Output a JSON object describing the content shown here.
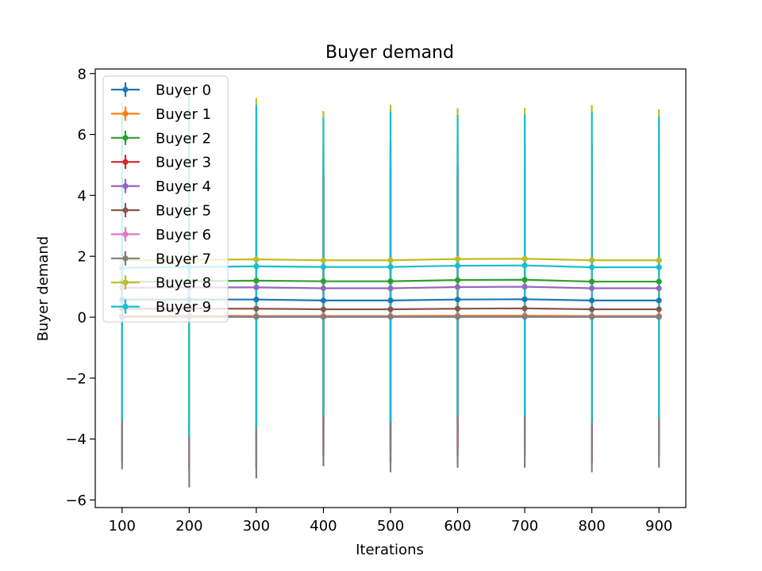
{
  "chart_data": {
    "type": "line",
    "title": "Buyer demand",
    "xlabel": "Iterations",
    "ylabel": "Buyer demand",
    "x": [
      100,
      200,
      300,
      400,
      500,
      600,
      700,
      800,
      900
    ],
    "xlim": [
      60,
      940
    ],
    "ylim": [
      -6.25,
      8.15
    ],
    "xticks": [
      100,
      200,
      300,
      400,
      500,
      600,
      700,
      800,
      900
    ],
    "yticks": [
      -6,
      -4,
      -2,
      0,
      2,
      4,
      6,
      8
    ],
    "ytick_labels": [
      "−6",
      "−4",
      "−2",
      "0",
      "2",
      "4",
      "6",
      "8"
    ],
    "grid": false,
    "legend_position": "upper-left",
    "error_bars": true,
    "series": [
      {
        "name": "Buyer 0",
        "color": "#1f77b4",
        "values": [
          0.58,
          0.58,
          0.58,
          0.55,
          0.55,
          0.58,
          0.59,
          0.55,
          0.55
        ],
        "err": [
          4.6,
          4.8,
          4.7,
          4.4,
          4.6,
          4.4,
          4.4,
          4.6,
          4.4
        ]
      },
      {
        "name": "Buyer 1",
        "color": "#ff7f0e",
        "values": [
          0.04,
          0.05,
          0.04,
          0.04,
          0.04,
          0.05,
          0.05,
          0.04,
          0.04
        ],
        "err": [
          4.8,
          5.0,
          5.0,
          4.6,
          4.8,
          4.6,
          4.6,
          4.8,
          4.6
        ]
      },
      {
        "name": "Buyer 2",
        "color": "#2ca02c",
        "values": [
          1.16,
          1.18,
          1.2,
          1.18,
          1.18,
          1.22,
          1.23,
          1.17,
          1.17
        ],
        "err": [
          4.6,
          4.8,
          4.8,
          4.5,
          4.6,
          4.5,
          4.5,
          4.6,
          4.5
        ]
      },
      {
        "name": "Buyer 3",
        "color": "#d62728",
        "values": [
          0.02,
          0.02,
          0.02,
          0.02,
          0.02,
          0.02,
          0.02,
          0.02,
          0.02
        ],
        "err": [
          4.8,
          5.0,
          5.0,
          4.6,
          4.8,
          4.6,
          4.6,
          4.8,
          4.6
        ]
      },
      {
        "name": "Buyer 4",
        "color": "#9467bd",
        "values": [
          0.97,
          0.98,
          0.98,
          0.95,
          0.95,
          0.99,
          1.0,
          0.95,
          0.95
        ],
        "err": [
          4.6,
          4.8,
          4.8,
          4.5,
          4.6,
          4.5,
          4.5,
          4.6,
          4.5
        ]
      },
      {
        "name": "Buyer 5",
        "color": "#8c564b",
        "values": [
          0.28,
          0.28,
          0.28,
          0.26,
          0.26,
          0.28,
          0.29,
          0.26,
          0.26
        ],
        "err": [
          4.7,
          4.9,
          4.9,
          4.6,
          4.7,
          4.6,
          4.6,
          4.7,
          4.6
        ]
      },
      {
        "name": "Buyer 6",
        "color": "#e377c2",
        "values": [
          0.02,
          0.02,
          0.02,
          0.02,
          0.02,
          0.02,
          0.02,
          0.02,
          0.02
        ],
        "err": [
          4.8,
          5.0,
          5.0,
          4.6,
          4.8,
          4.6,
          4.6,
          4.8,
          4.6
        ]
      },
      {
        "name": "Buyer 7",
        "color": "#7f7f7f",
        "values": [
          0.01,
          0.01,
          0.01,
          0.01,
          0.01,
          0.01,
          0.01,
          0.01,
          0.01
        ],
        "err": [
          5.0,
          5.6,
          5.3,
          4.9,
          5.1,
          4.95,
          4.95,
          5.1,
          4.95
        ]
      },
      {
        "name": "Buyer 8",
        "color": "#bcbd22",
        "values": [
          1.87,
          1.88,
          1.9,
          1.87,
          1.87,
          1.91,
          1.92,
          1.87,
          1.87
        ],
        "err": [
          5.2,
          5.4,
          5.3,
          4.9,
          5.1,
          4.95,
          4.95,
          5.1,
          4.95
        ]
      },
      {
        "name": "Buyer 9",
        "color": "#17becf",
        "values": [
          1.62,
          1.65,
          1.67,
          1.65,
          1.65,
          1.69,
          1.7,
          1.64,
          1.64
        ],
        "err": [
          5.0,
          5.6,
          5.3,
          4.9,
          5.1,
          4.95,
          4.95,
          5.1,
          4.95
        ]
      }
    ]
  }
}
